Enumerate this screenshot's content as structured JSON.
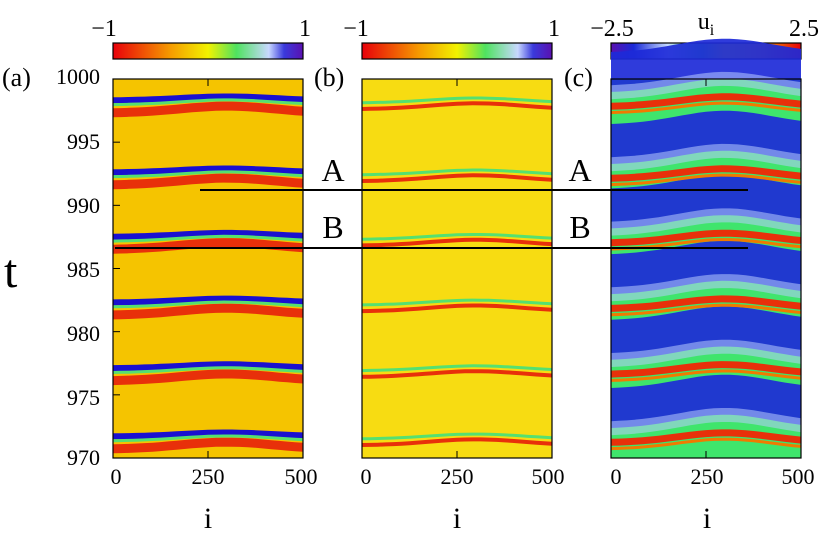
{
  "chart_data": [
    {
      "type": "heatmap",
      "panel_label": "(a)",
      "xlabel": "i",
      "ylabel": "t",
      "xlim": [
        0,
        500
      ],
      "ylim": [
        970,
        1000
      ],
      "xticks": [
        "0",
        "250",
        "500"
      ],
      "yticks": [
        "970",
        "975",
        "980",
        "985",
        "990",
        "995",
        "1000"
      ],
      "colorbar": {
        "min_label": "−1",
        "max_label": "1",
        "range": [
          -1,
          1
        ]
      },
      "bands": [
        {
          "t": 971.2,
          "style": "red-blue"
        },
        {
          "t": 976.6,
          "style": "red-blue"
        },
        {
          "t": 981.8,
          "style": "red-blue"
        },
        {
          "t": 987.0,
          "style": "red-blue"
        },
        {
          "t": 992.1,
          "style": "red-blue"
        },
        {
          "t": 997.8,
          "style": "red-blue"
        }
      ]
    },
    {
      "type": "heatmap",
      "panel_label": "(b)",
      "xlabel": "i",
      "xlim": [
        0,
        500
      ],
      "ylim": [
        970,
        1000
      ],
      "xticks": [
        "0",
        "250",
        "500"
      ],
      "colorbar": {
        "min_label": "−1",
        "max_label": "1",
        "range": [
          -1,
          1
        ]
      },
      "bands": [
        {
          "t": 971.2,
          "style": "thin"
        },
        {
          "t": 976.6,
          "style": "thin"
        },
        {
          "t": 981.8,
          "style": "thin"
        },
        {
          "t": 987.0,
          "style": "thin"
        },
        {
          "t": 992.1,
          "style": "thin"
        },
        {
          "t": 997.8,
          "style": "thin"
        }
      ]
    },
    {
      "type": "heatmap",
      "panel_label": "(c)",
      "xlabel": "i",
      "xlim": [
        0,
        500
      ],
      "ylim": [
        970,
        1000
      ],
      "xticks": [
        "0",
        "250",
        "500"
      ],
      "colorbar": {
        "min_label": "−2.5",
        "max_label": "2.5",
        "title": "u",
        "title_sub": "i",
        "range": [
          -2.5,
          2.5
        ]
      },
      "bands": [
        {
          "t": 971.2,
          "style": "spike"
        },
        {
          "t": 976.6,
          "style": "spike"
        },
        {
          "t": 981.8,
          "style": "spike"
        },
        {
          "t": 987.0,
          "style": "spike"
        },
        {
          "t": 992.1,
          "style": "spike"
        },
        {
          "t": 997.8,
          "style": "spike"
        }
      ]
    }
  ],
  "annotations": [
    {
      "text": "A",
      "t": 991.2
    },
    {
      "text": "B",
      "t": 986.6
    }
  ],
  "colors": {
    "bg_a": "#f5c400",
    "bg_b": "#f7dc12",
    "red": "#e8300a",
    "orange": "#f07a00",
    "green": "#55e070",
    "blue": "#1a10d0",
    "c_blue": "#1d2ad8",
    "c_green": "#3fe56c"
  }
}
